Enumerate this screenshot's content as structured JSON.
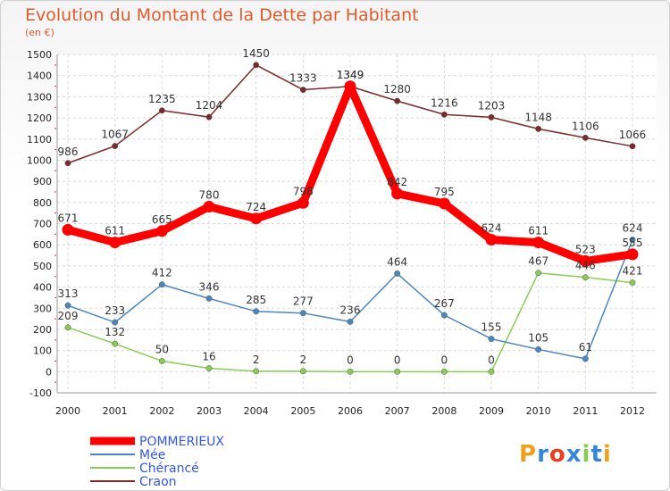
{
  "chart_data": {
    "type": "line",
    "title": "Evolution du Montant de la Dette par Habitant",
    "subtitle": "(en €)",
    "xlabel": "",
    "ylabel": "",
    "x": [
      "2000",
      "2001",
      "2002",
      "2003",
      "2004",
      "2005",
      "2006",
      "2007",
      "2008",
      "2009",
      "2010",
      "2011",
      "2012"
    ],
    "ylim": [
      -100,
      1500
    ],
    "yticks": [
      -100,
      0,
      100,
      200,
      300,
      400,
      500,
      600,
      700,
      800,
      900,
      1000,
      1100,
      1200,
      1300,
      1400,
      1500
    ],
    "grid": true,
    "legend_position": "bottom-left",
    "series": [
      {
        "name": "POMMERIEUX",
        "color": "#ff0000",
        "values": [
          671,
          611,
          665,
          780,
          724,
          798,
          1349,
          842,
          795,
          624,
          611,
          523,
          555
        ]
      },
      {
        "name": "Mée",
        "color": "#4a86c0",
        "values": [
          313,
          233,
          412,
          346,
          285,
          277,
          236,
          464,
          267,
          155,
          105,
          61,
          624
        ]
      },
      {
        "name": "Chérancé",
        "color": "#88cc55",
        "values": [
          209,
          132,
          50,
          16,
          2,
          2,
          0,
          0,
          0,
          0,
          467,
          446,
          421
        ]
      },
      {
        "name": "Craon",
        "color": "#7a2a2a",
        "values": [
          986,
          1067,
          1235,
          1204,
          1450,
          1333,
          1349,
          1280,
          1216,
          1203,
          1148,
          1106,
          1066
        ]
      }
    ],
    "data_labels": {
      "POMMERIEUX": [
        "671",
        "611",
        "665",
        "780",
        "724",
        "798",
        "1349",
        "842",
        "795",
        "624",
        "611",
        "523",
        "555"
      ],
      "Mée": [
        "313",
        "233",
        "412",
        "346",
        "285",
        "277",
        "236",
        "464",
        "267",
        "155",
        "105",
        "61",
        "624"
      ],
      "Chérancé": [
        "209",
        "132",
        "50",
        "16",
        "2",
        "2",
        "0",
        "0",
        "0",
        "0",
        "467",
        "446",
        "421"
      ],
      "Craon": [
        "986",
        "1067",
        "1235",
        "1204",
        "1450",
        "1333",
        "1349",
        "1280",
        "1216",
        "1203",
        "1148",
        "1106",
        "1066"
      ]
    }
  },
  "legend_text_color": "#3355ee",
  "logo": {
    "letters": [
      "P",
      "r",
      "o",
      "x",
      "i",
      "t",
      "i"
    ],
    "colors": [
      "#f0a020",
      "#3388dd",
      "#e94020",
      "#3388dd",
      "#88cc55",
      "#3388dd",
      "#f0a020"
    ]
  }
}
